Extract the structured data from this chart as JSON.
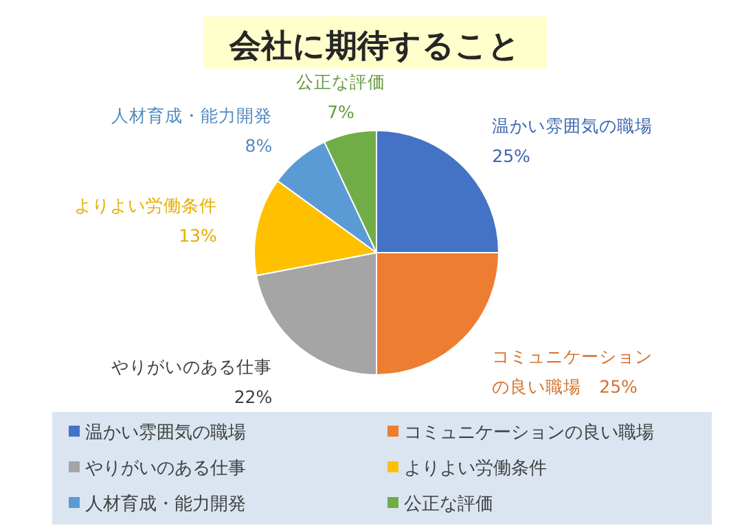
{
  "chart_data": {
    "type": "pie",
    "title": "会社に期待すること",
    "categories": [
      "温かい雰囲気の職場",
      "コミュニケーションの良い職場",
      "やりがいのある仕事",
      "よりよい労働条件",
      "人材育成・能力開発",
      "公正な評価"
    ],
    "values": [
      25,
      25,
      22,
      13,
      8,
      7
    ],
    "value_labels": [
      "25%",
      "25%",
      "22%",
      "13%",
      "8%",
      "7%"
    ],
    "colors": [
      "#4472c4",
      "#ed7d31",
      "#a5a5a5",
      "#ffc000",
      "#5b9bd5",
      "#70ad47"
    ],
    "legend": "bottom"
  }
}
